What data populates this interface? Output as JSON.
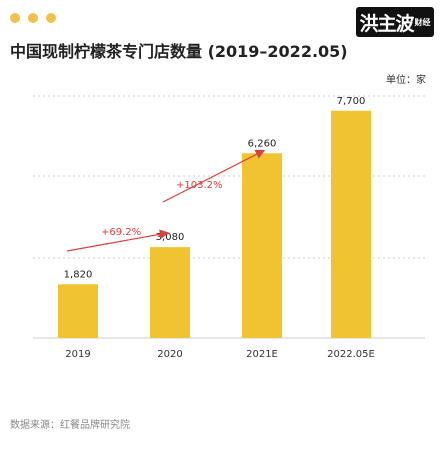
{
  "title": "中国现制柠檬茶专门店数量 (2019–2022.05)",
  "unit_label": "单位：家",
  "source": "数据来源：红餐品牌研究院",
  "logo_text": "洪主波",
  "logo_sub": "财经",
  "colors": {
    "bar": "#f0c430",
    "arrow": "#d9423e",
    "dot": "#f0c24a",
    "grid": "#cccccc"
  },
  "chart_data": {
    "type": "bar",
    "categories": [
      "2019",
      "2020",
      "2021E",
      "2022.05E"
    ],
    "values": [
      1820,
      3080,
      6260,
      7700
    ],
    "value_labels": [
      "1,820",
      "3,080",
      "6,260",
      "7,700"
    ],
    "ylim": [
      0,
      8200
    ],
    "grid": true,
    "annotations": [
      {
        "text": "+69.2%",
        "from": "2019",
        "to": "2020"
      },
      {
        "text": "+103.2%",
        "from": "2020",
        "to": "2021E"
      }
    ]
  }
}
